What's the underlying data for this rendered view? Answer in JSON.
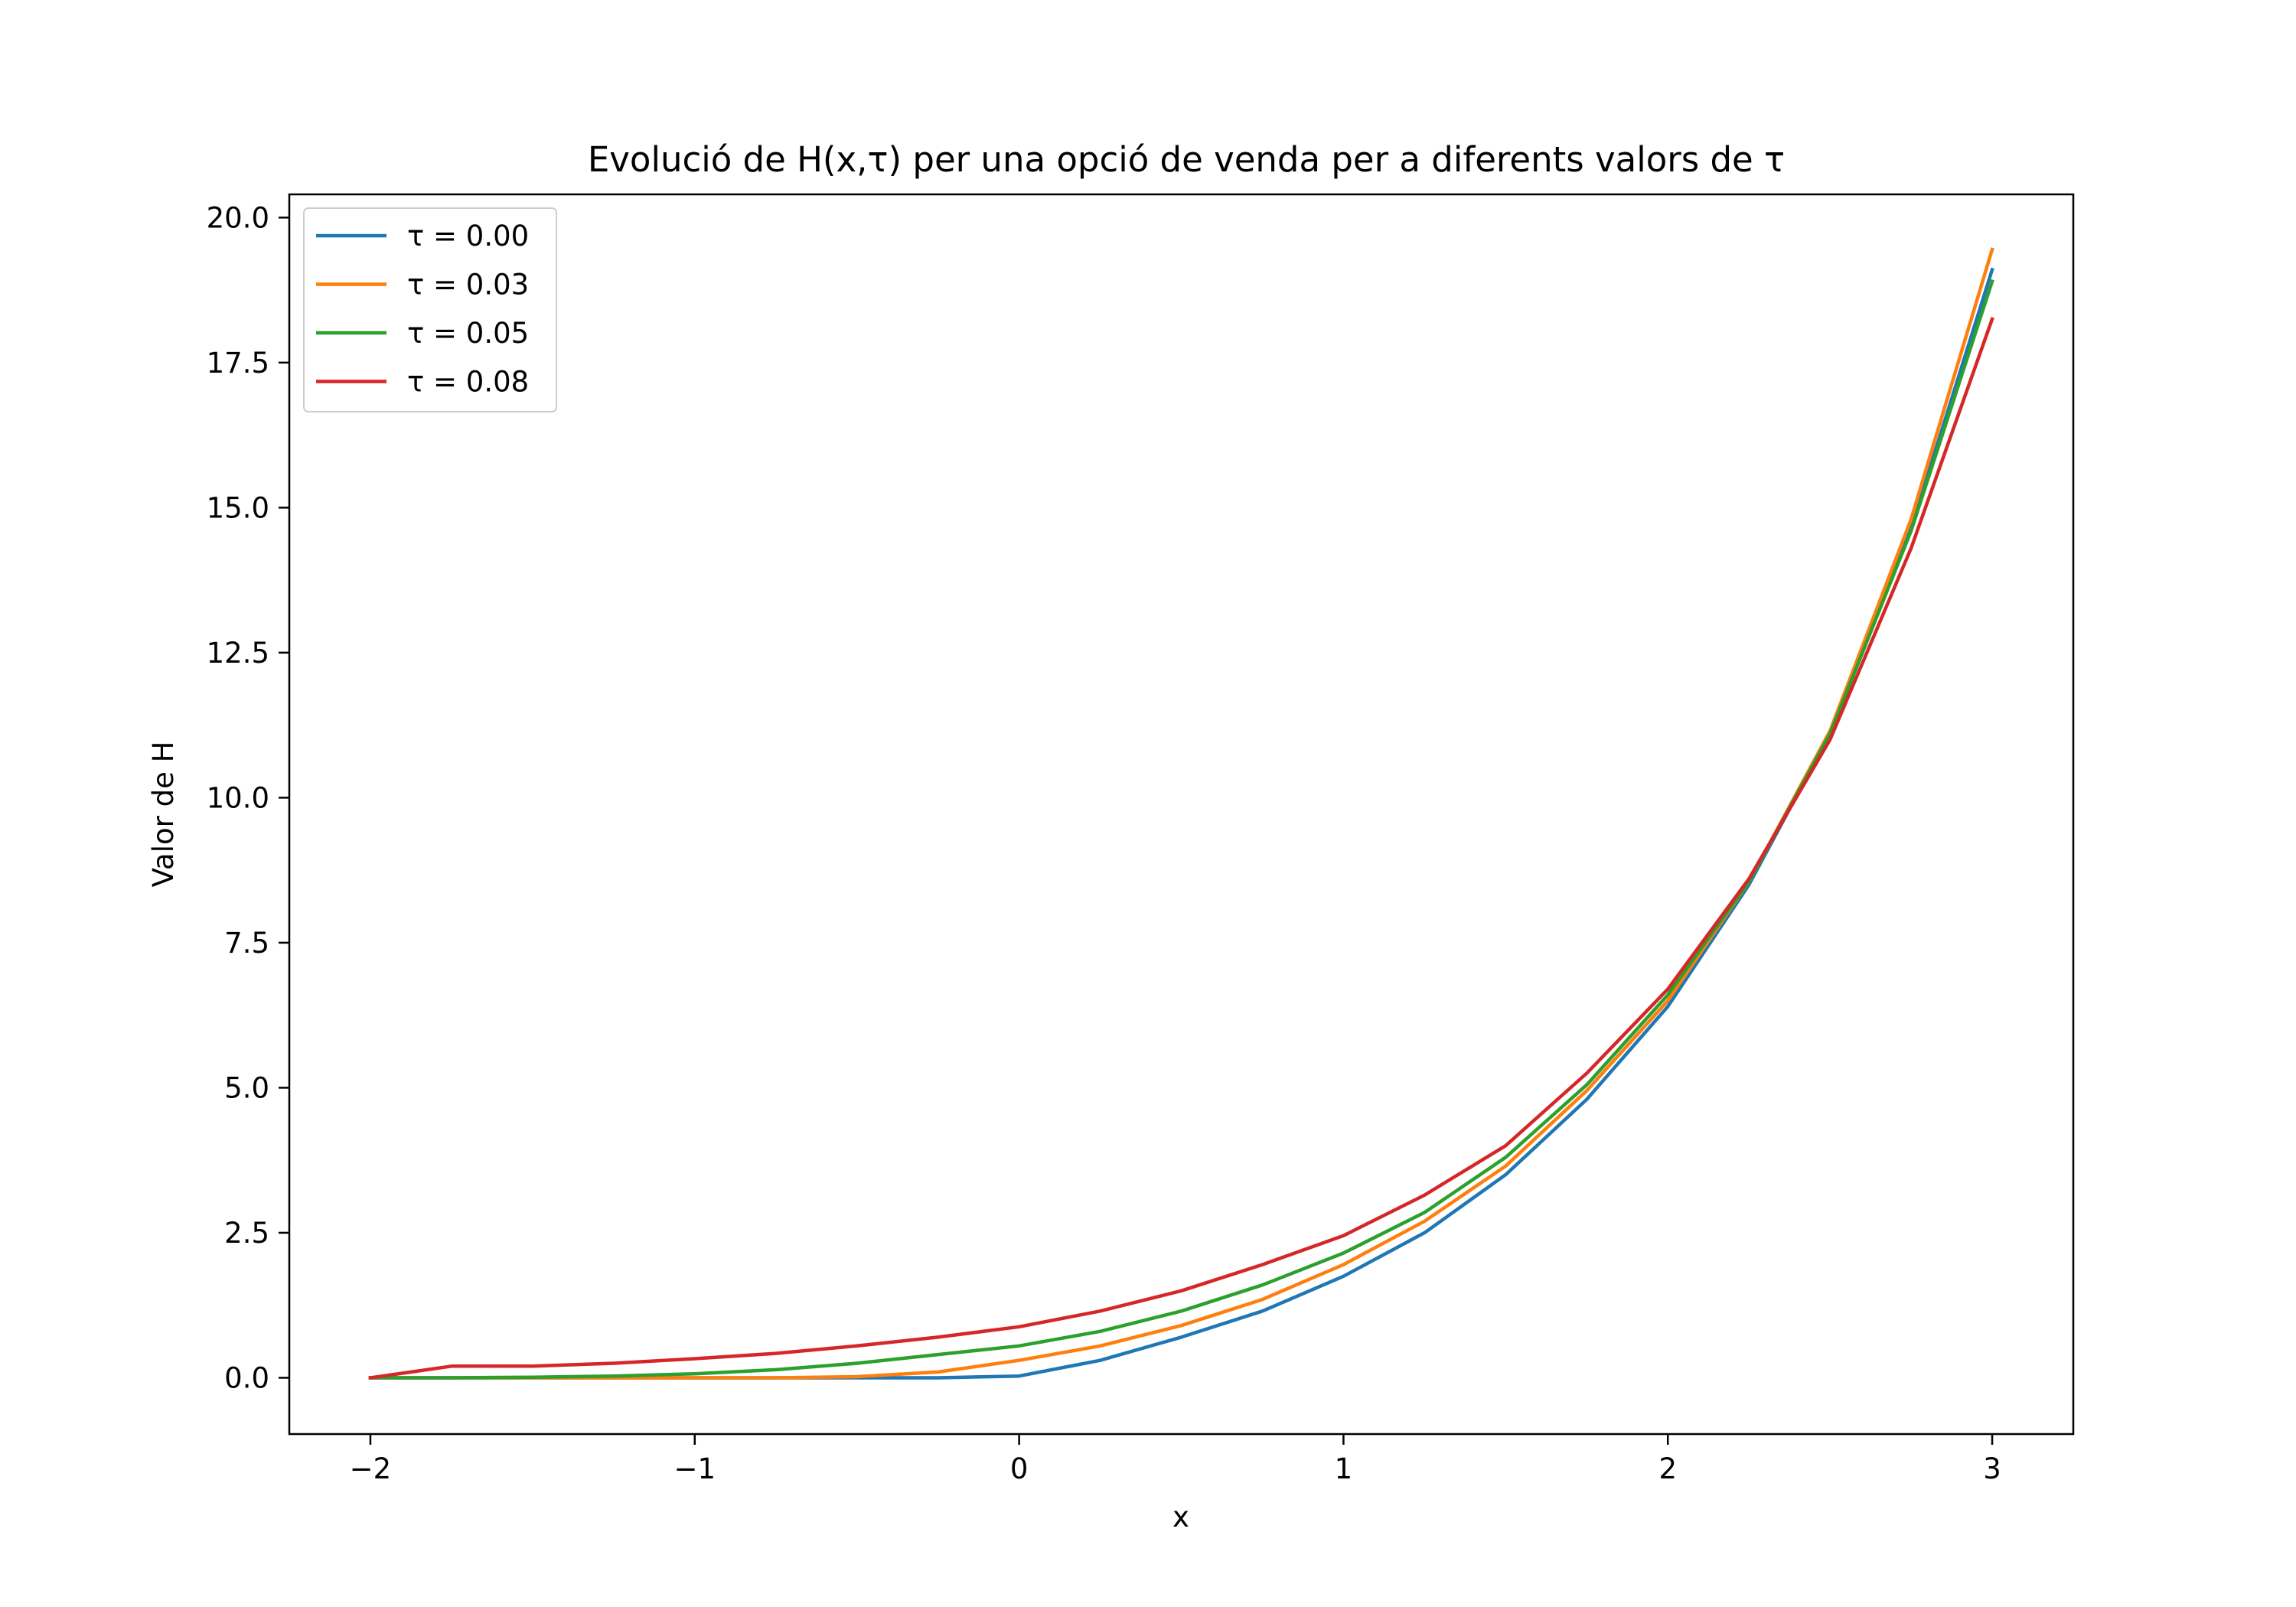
{
  "chart_data": {
    "type": "line",
    "title": "Evolució de H(x,τ) per una opció de venda per a diferents valors de τ",
    "xlabel": "x",
    "ylabel": "Valor de H",
    "xlim": [
      -2.25,
      3.25
    ],
    "ylim": [
      -0.97,
      20.4
    ],
    "xticks": [
      -2,
      -1,
      0,
      1,
      2,
      3
    ],
    "xtick_labels": [
      "−2",
      "−1",
      "0",
      "1",
      "2",
      "3"
    ],
    "yticks": [
      0,
      2.5,
      5,
      7.5,
      10,
      12.5,
      15,
      17.5,
      20
    ],
    "ytick_labels": [
      "0.0",
      "2.5",
      "5.0",
      "7.5",
      "10.0",
      "12.5",
      "15.0",
      "17.5",
      "20.0"
    ],
    "grid": false,
    "legend_position": "upper-left",
    "x": [
      -2.0,
      -1.75,
      -1.5,
      -1.25,
      -1.0,
      -0.75,
      -0.5,
      -0.25,
      0.0,
      0.25,
      0.5,
      0.75,
      1.0,
      1.25,
      1.5,
      1.75,
      2.0,
      2.25,
      2.5,
      2.75,
      3.0
    ],
    "series": [
      {
        "name": "τ = 0.00",
        "color": "#1f77b4",
        "values": [
          0.0,
          0.0,
          0.0,
          0.0,
          0.0,
          0.0,
          0.0,
          0.0,
          0.03,
          0.3,
          0.7,
          1.15,
          1.75,
          2.5,
          3.5,
          4.8,
          6.4,
          8.5,
          11.1,
          14.65,
          19.1
        ]
      },
      {
        "name": "τ = 0.03",
        "color": "#ff7f0e",
        "values": [
          0.0,
          0.0,
          0.0,
          0.0,
          0.0,
          0.0,
          0.02,
          0.1,
          0.3,
          0.55,
          0.9,
          1.35,
          1.95,
          2.7,
          3.65,
          4.95,
          6.5,
          8.55,
          11.15,
          14.8,
          19.45
        ]
      },
      {
        "name": "τ = 0.05",
        "color": "#2ca02c",
        "values": [
          0.0,
          0.0,
          0.01,
          0.03,
          0.07,
          0.14,
          0.25,
          0.4,
          0.55,
          0.8,
          1.15,
          1.6,
          2.15,
          2.85,
          3.8,
          5.05,
          6.6,
          8.55,
          11.1,
          14.6,
          18.9
        ]
      },
      {
        "name": "τ = 0.08",
        "color": "#d62728",
        "values": [
          0.0,
          0.2,
          0.2,
          0.25,
          0.33,
          0.42,
          0.55,
          0.7,
          0.88,
          1.15,
          1.5,
          1.95,
          2.45,
          3.15,
          4.0,
          5.25,
          6.7,
          8.6,
          11.0,
          14.3,
          18.25
        ]
      }
    ]
  }
}
